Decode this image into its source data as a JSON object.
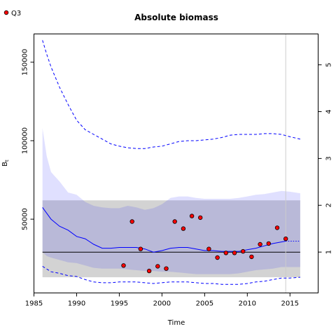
{
  "chart_data": {
    "type": "line",
    "title": "Absolute biomass",
    "xlabel": "Time",
    "ylabel": "B_t",
    "xlim": [
      1985,
      2018.3
    ],
    "ylim": [
      3000,
      168000
    ],
    "y2lim": [
      0.127,
      5.66
    ],
    "x_ticks": [
      1985,
      1990,
      1995,
      2000,
      2005,
      2010,
      2015
    ],
    "y_ticks": [
      50000,
      100000,
      150000
    ],
    "y2_ticks": [
      1,
      2,
      3,
      4,
      5
    ],
    "grid": false,
    "legend": {
      "position": "top-left",
      "entries": [
        {
          "label": "Q3",
          "marker": "filled-circle",
          "color": "#ff0000"
        }
      ]
    },
    "reference_line": {
      "y": 29000,
      "color": "#000000"
    },
    "vertical_line": {
      "x": 2014.5,
      "color": "#cccccc"
    },
    "bmsy_band": {
      "x_range": [
        1986,
        2016.2
      ],
      "y_range": [
        13000,
        62000
      ],
      "color": "#d3d3d3"
    },
    "series": [
      {
        "name": "Q3",
        "kind": "points",
        "x": [
          1995.5,
          1996.5,
          1997.5,
          1998.5,
          1999.5,
          2000.5,
          2001.5,
          2002.5,
          2003.5,
          2004.5,
          2005.5,
          2006.5,
          2007.5,
          2008.5,
          2009.5,
          2010.5,
          2011.5,
          2012.5,
          2013.5,
          2014.5
        ],
        "y": [
          20500,
          48500,
          31000,
          17000,
          20000,
          18500,
          48500,
          44000,
          52000,
          51000,
          31000,
          25500,
          28500,
          28500,
          29500,
          26000,
          34000,
          34500,
          44500,
          37500
        ],
        "fill": "#ff0000",
        "stroke": "#000000"
      },
      {
        "kind": "estimate",
        "style": "solid",
        "color": "#0000ff",
        "x": [
          1986,
          1987,
          1988,
          1989,
          1990,
          1991,
          1992,
          1993,
          1994,
          1995,
          1996,
          1997,
          1998,
          1999,
          2000,
          2001,
          2002,
          2003,
          2004,
          2005,
          2006,
          2007,
          2008,
          2009,
          2010,
          2011,
          2012,
          2013,
          2014,
          2014.5
        ],
        "y": [
          57500,
          50000,
          45500,
          43000,
          39000,
          37500,
          34000,
          31500,
          31500,
          32000,
          32000,
          32000,
          31000,
          29000,
          30000,
          31500,
          32000,
          32000,
          31000,
          30000,
          30000,
          29500,
          29500,
          29500,
          30500,
          31500,
          33000,
          34500,
          35500,
          36000
        ]
      },
      {
        "kind": "prediction",
        "style": "dotted",
        "color": "#0000ff",
        "x": [
          2014.5,
          2015,
          2016.2
        ],
        "y": [
          36000,
          36000,
          36000
        ]
      },
      {
        "kind": "ci_upper",
        "style": "dashed",
        "color": "#0000ff",
        "x": [
          1986,
          1986.5,
          1987,
          1988,
          1989,
          1990,
          1991,
          1992,
          1993,
          1994,
          1995,
          1996,
          1997,
          1998,
          1999,
          2000,
          2001,
          2002,
          2003,
          2004,
          2005,
          2006,
          2007,
          2008,
          2009,
          2010,
          2011,
          2012,
          2013,
          2014,
          2015,
          2016.2
        ],
        "y": [
          164000,
          155000,
          147000,
          134000,
          123000,
          113000,
          107000,
          104000,
          101000,
          98000,
          96500,
          95500,
          95000,
          95000,
          96000,
          96500,
          98000,
          99500,
          100000,
          100000,
          100500,
          101000,
          102000,
          103500,
          104000,
          104000,
          104000,
          104500,
          104500,
          104000,
          102500,
          101000
        ]
      },
      {
        "kind": "ci_lower",
        "style": "dashed",
        "color": "#0000ff",
        "x": [
          1986,
          1987,
          1988,
          1989,
          1990,
          1991,
          1992,
          1993,
          1994,
          1995,
          1996,
          1997,
          1998,
          1999,
          2000,
          2001,
          2002,
          2003,
          2004,
          2005,
          2006,
          2007,
          2008,
          2009,
          2010,
          2011,
          2012,
          2013,
          2014,
          2015,
          2016.2
        ],
        "y": [
          20000,
          16500,
          15500,
          14000,
          13500,
          11500,
          10000,
          9500,
          9500,
          10000,
          10000,
          10000,
          9500,
          9000,
          9500,
          10000,
          10000,
          10000,
          9500,
          9000,
          9000,
          8500,
          8500,
          8500,
          9000,
          10000,
          10500,
          11500,
          12500,
          12500,
          13000
        ]
      },
      {
        "kind": "band",
        "color": "#0000ff",
        "x": [
          1986,
          1986.5,
          1987,
          1988,
          1989,
          1990,
          1991,
          1992,
          1993,
          1994,
          1995,
          1996,
          1997,
          1998,
          1999,
          2000,
          2001,
          2002,
          2003,
          2004,
          2005,
          2006,
          2007,
          2008,
          2009,
          2010,
          2011,
          2012,
          2013,
          2014,
          2015,
          2016.2
        ],
        "upper": [
          108000,
          90000,
          80000,
          74000,
          67000,
          65500,
          61000,
          58500,
          57500,
          57000,
          57000,
          58500,
          57500,
          56000,
          57000,
          59500,
          63500,
          64500,
          64500,
          63500,
          63000,
          63000,
          63000,
          63000,
          63500,
          64500,
          65500,
          66000,
          67000,
          68000,
          67500,
          66500
        ],
        "lower": [
          29000,
          26500,
          25500,
          24000,
          22500,
          22000,
          20500,
          19000,
          18500,
          18500,
          18500,
          18000,
          17500,
          17000,
          17000,
          16500,
          16500,
          16000,
          15500,
          15000,
          15000,
          15000,
          15000,
          15000,
          15500,
          16500,
          17500,
          18000,
          18500,
          19500,
          19500,
          19500
        ]
      }
    ]
  }
}
